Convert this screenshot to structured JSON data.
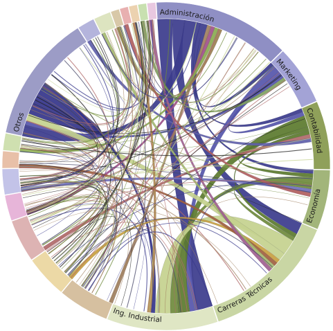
{
  "chart_data": {
    "type": "chord",
    "title": "",
    "groups": [
      {
        "name": "Administración",
        "value": 16,
        "color": "#8f8fc4",
        "ribbon": "#3b3b8c"
      },
      {
        "name": "Marketing",
        "value": 7,
        "color": "#a3a3d6",
        "ribbon": "#5555aa"
      },
      {
        "name": "Contabilidad",
        "value": 8,
        "color": "#8fa05a",
        "ribbon": "#5b7a2e"
      },
      {
        "name": "Economía",
        "value": 7,
        "color": "#a2b57a",
        "ribbon": "#6f8a3c"
      },
      {
        "name": "Carreras Técnicas",
        "value": 16,
        "color": "#c9d6a4",
        "ribbon": "#c4d18e"
      },
      {
        "name": "Ing. Industrial",
        "value": 13,
        "color": "#dfe6c4",
        "ribbon": "#b8c98a"
      },
      {
        "name": "",
        "value": 6,
        "color": "#d6c0a0",
        "ribbon": "#a08060"
      },
      {
        "name": "",
        "value": 5,
        "color": "#ecd9a6",
        "ribbon": "#c7a040"
      },
      {
        "name": "",
        "value": 5,
        "color": "#ddb3b3",
        "ribbon": "#b06a6a"
      },
      {
        "name": "",
        "value": 3,
        "color": "#e7b5d9",
        "ribbon": "#a0508a"
      },
      {
        "name": "",
        "value": 3,
        "color": "#c3c3e8",
        "ribbon": "#7070bb"
      },
      {
        "name": "",
        "value": 2,
        "color": "#e8c0a8",
        "ribbon": "#a06040"
      },
      {
        "name": "",
        "value": 2,
        "color": "#cfe0b0",
        "ribbon": "#8aaa50"
      },
      {
        "name": "Otros",
        "value": 15,
        "color": "#9c9cc6",
        "ribbon": "#34348a"
      },
      {
        "name": "",
        "value": 2,
        "color": "#b4b4dc",
        "ribbon": "#6060aa"
      },
      {
        "name": "",
        "value": 2,
        "color": "#dde4c0",
        "ribbon": "#a4b870"
      },
      {
        "name": "",
        "value": 1,
        "color": "#d8c8a8",
        "ribbon": "#9a8050"
      },
      {
        "name": "",
        "value": 1,
        "color": "#e8b0b0",
        "ribbon": "#b06060"
      },
      {
        "name": "",
        "value": 1,
        "color": "#ecd2b0",
        "ribbon": "#b08850"
      },
      {
        "name": "",
        "value": 1,
        "color": "#c8e0b0",
        "ribbon": "#80a060"
      },
      {
        "name": "",
        "value": 1,
        "color": "#e8c8e0",
        "ribbon": "#a06090"
      }
    ],
    "flows": [
      {
        "source": 0,
        "target": 5,
        "value": 4
      },
      {
        "source": 0,
        "target": 4,
        "value": 3
      },
      {
        "source": 0,
        "target": 13,
        "value": 3
      },
      {
        "source": 0,
        "target": 3,
        "value": 1
      },
      {
        "source": 0,
        "target": 2,
        "value": 1
      },
      {
        "source": 0,
        "target": 1,
        "value": 1
      },
      {
        "source": 1,
        "target": 5,
        "value": 2
      },
      {
        "source": 1,
        "target": 2,
        "value": 1
      },
      {
        "source": 1,
        "target": 13,
        "value": 1
      },
      {
        "source": 2,
        "target": 5,
        "value": 3
      },
      {
        "source": 2,
        "target": 3,
        "value": 1
      },
      {
        "source": 2,
        "target": 4,
        "value": 1
      },
      {
        "source": 3,
        "target": 5,
        "value": 2
      },
      {
        "source": 3,
        "target": 4,
        "value": 1
      },
      {
        "source": 4,
        "target": 5,
        "value": 4
      },
      {
        "source": 4,
        "target": 13,
        "value": 2
      },
      {
        "source": 13,
        "target": 13,
        "value": 4
      },
      {
        "source": 13,
        "target": 5,
        "value": 1
      },
      {
        "source": 6,
        "target": 0,
        "value": 1
      },
      {
        "source": 7,
        "target": 4,
        "value": 1
      },
      {
        "source": 8,
        "target": 2,
        "value": 1
      },
      {
        "source": 9,
        "target": 0,
        "value": 1
      },
      {
        "source": 10,
        "target": 3,
        "value": 1
      },
      {
        "source": 11,
        "target": 4,
        "value": 1
      },
      {
        "source": 12,
        "target": 0,
        "value": 1
      },
      {
        "source": 14,
        "target": 2,
        "value": 1
      },
      {
        "source": 15,
        "target": 4,
        "value": 1
      },
      {
        "source": 16,
        "target": 0,
        "value": 1
      },
      {
        "source": 17,
        "target": 3,
        "value": 1
      },
      {
        "source": 18,
        "target": 5,
        "value": 1
      },
      {
        "source": 19,
        "target": 1,
        "value": 1
      },
      {
        "source": 20,
        "target": 4,
        "value": 1
      }
    ]
  }
}
